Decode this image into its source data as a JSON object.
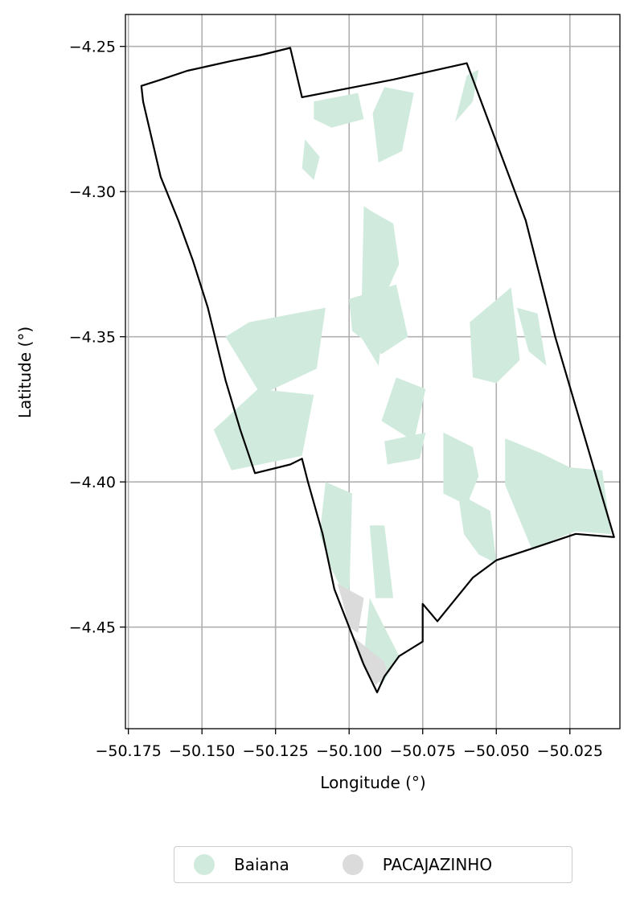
{
  "chart_data": {
    "type": "map",
    "title": "",
    "xlabel": "Longitude (°)",
    "ylabel": "Latitude (°)",
    "xlim": [
      -50.176,
      -50.008
    ],
    "ylim": [
      -4.485,
      -4.239
    ],
    "x_ticks": [
      {
        "value": -50.175,
        "label": "−50.175"
      },
      {
        "value": -50.15,
        "label": "−50.150"
      },
      {
        "value": -50.125,
        "label": "−50.125"
      },
      {
        "value": -50.1,
        "label": "−50.100"
      },
      {
        "value": -50.075,
        "label": "−50.075"
      },
      {
        "value": -50.05,
        "label": "−50.050"
      },
      {
        "value": -50.025,
        "label": "−50.025"
      }
    ],
    "y_ticks": [
      {
        "value": -4.25,
        "label": "−4.25"
      },
      {
        "value": -4.3,
        "label": "−4.30"
      },
      {
        "value": -4.35,
        "label": "−4.35"
      },
      {
        "value": -4.4,
        "label": "−4.40"
      },
      {
        "value": -4.45,
        "label": "−4.45"
      }
    ],
    "grid": true,
    "legend_position": "bottom-center",
    "legend": [
      {
        "name": "Baiana",
        "color": "#d0ebdd"
      },
      {
        "name": "PACAJAZINHO",
        "color": "#dcdbdc"
      }
    ],
    "boundary": [
      [
        -50.1706,
        -4.2636
      ],
      [
        -50.1644,
        -4.2616
      ],
      [
        -50.155,
        -4.2584
      ],
      [
        -50.14,
        -4.255
      ],
      [
        -50.13,
        -4.253
      ],
      [
        -50.12,
        -4.2505
      ],
      [
        -50.116,
        -4.2675
      ],
      [
        -50.085,
        -4.2614
      ],
      [
        -50.06,
        -4.2558
      ],
      [
        -50.04,
        -4.31
      ],
      [
        -50.03,
        -4.35
      ],
      [
        -50.01,
        -4.419
      ],
      [
        -50.023,
        -4.4179
      ],
      [
        -50.038,
        -4.423
      ],
      [
        -50.05,
        -4.427
      ],
      [
        -50.058,
        -4.433
      ],
      [
        -50.07,
        -4.448
      ],
      [
        -50.075,
        -4.442
      ],
      [
        -50.075,
        -4.455
      ],
      [
        -50.083,
        -4.46
      ],
      [
        -50.088,
        -4.467
      ],
      [
        -50.0905,
        -4.4725
      ],
      [
        -50.095,
        -4.463
      ],
      [
        -50.1,
        -4.45
      ],
      [
        -50.105,
        -4.437
      ],
      [
        -50.109,
        -4.418
      ],
      [
        -50.114,
        -4.4
      ],
      [
        -50.116,
        -4.392
      ],
      [
        -50.12,
        -4.394
      ],
      [
        -50.132,
        -4.397
      ],
      [
        -50.137,
        -4.382
      ],
      [
        -50.142,
        -4.365
      ],
      [
        -50.148,
        -4.34
      ],
      [
        -50.153,
        -4.324
      ],
      [
        -50.158,
        -4.31
      ],
      [
        -50.164,
        -4.295
      ],
      [
        -50.17,
        -4.269
      ]
    ],
    "regions": [
      {
        "name": "Baiana",
        "color": "#d0ebdd",
        "polygons": [
          [
            [
              -50.095,
              -4.305
            ],
            [
              -50.092,
              -4.307
            ],
            [
              -50.085,
              -4.311
            ],
            [
              -50.083,
              -4.325
            ],
            [
              -50.087,
              -4.334
            ],
            [
              -50.09,
              -4.36
            ],
            [
              -50.096,
              -4.35
            ]
          ],
          [
            [
              -50.1,
              -4.337
            ],
            [
              -50.084,
              -4.332
            ],
            [
              -50.08,
              -4.35
            ],
            [
              -50.089,
              -4.356
            ],
            [
              -50.099,
              -4.348
            ]
          ],
          [
            [
              -50.108,
              -4.34
            ],
            [
              -50.134,
              -4.345
            ],
            [
              -50.142,
              -4.35
            ],
            [
              -50.13,
              -4.37
            ],
            [
              -50.111,
              -4.361
            ]
          ],
          [
            [
              -50.131,
              -4.368
            ],
            [
              -50.146,
              -4.382
            ],
            [
              -50.14,
              -4.396
            ],
            [
              -50.116,
              -4.391
            ],
            [
              -50.112,
              -4.37
            ]
          ],
          [
            [
              -50.084,
              -4.364
            ],
            [
              -50.074,
              -4.368
            ],
            [
              -50.078,
              -4.386
            ],
            [
              -50.089,
              -4.379
            ]
          ],
          [
            [
              -50.088,
              -4.386
            ],
            [
              -50.074,
              -4.383
            ],
            [
              -50.076,
              -4.392
            ],
            [
              -50.087,
              -4.394
            ]
          ],
          [
            [
              -50.059,
              -4.345
            ],
            [
              -50.045,
              -4.333
            ],
            [
              -50.042,
              -4.358
            ],
            [
              -50.05,
              -4.366
            ],
            [
              -50.058,
              -4.364
            ]
          ],
          [
            [
              -50.043,
              -4.34
            ],
            [
              -50.039,
              -4.355
            ],
            [
              -50.033,
              -4.36
            ],
            [
              -50.036,
              -4.342
            ]
          ],
          [
            [
              -50.047,
              -4.385
            ],
            [
              -50.035,
              -4.39
            ],
            [
              -50.025,
              -4.395
            ],
            [
              -50.014,
              -4.396
            ],
            [
              -50.011,
              -4.418
            ],
            [
              -50.023,
              -4.417
            ],
            [
              -50.038,
              -4.423
            ],
            [
              -50.047,
              -4.401
            ]
          ],
          [
            [
              -50.064,
              -4.276
            ],
            [
              -50.06,
              -4.26
            ],
            [
              -50.056,
              -4.258
            ],
            [
              -50.058,
              -4.269
            ]
          ],
          [
            [
              -50.088,
              -4.264
            ],
            [
              -50.078,
              -4.266
            ],
            [
              -50.082,
              -4.286
            ],
            [
              -50.09,
              -4.29
            ],
            [
              -50.092,
              -4.273
            ]
          ],
          [
            [
              -50.112,
              -4.269
            ],
            [
              -50.097,
              -4.266
            ],
            [
              -50.095,
              -4.275
            ],
            [
              -50.106,
              -4.278
            ],
            [
              -50.112,
              -4.275
            ]
          ],
          [
            [
              -50.115,
              -4.282
            ],
            [
              -50.11,
              -4.288
            ],
            [
              -50.112,
              -4.296
            ],
            [
              -50.116,
              -4.292
            ]
          ],
          [
            [
              -50.108,
              -4.4
            ],
            [
              -50.099,
              -4.404
            ],
            [
              -50.1,
              -4.442
            ],
            [
              -50.106,
              -4.43
            ],
            [
              -50.11,
              -4.418
            ]
          ],
          [
            [
              -50.093,
              -4.415
            ],
            [
              -50.088,
              -4.415
            ],
            [
              -50.085,
              -4.44
            ],
            [
              -50.091,
              -4.44
            ]
          ],
          [
            [
              -50.093,
              -4.44
            ],
            [
              -50.083,
              -4.46
            ],
            [
              -50.089,
              -4.47
            ],
            [
              -50.095,
              -4.46
            ]
          ],
          [
            [
              -50.068,
              -4.383
            ],
            [
              -50.058,
              -4.388
            ],
            [
              -50.056,
              -4.398
            ],
            [
              -50.06,
              -4.408
            ],
            [
              -50.068,
              -4.404
            ]
          ],
          [
            [
              -50.063,
              -4.404
            ],
            [
              -50.052,
              -4.41
            ],
            [
              -50.05,
              -4.428
            ],
            [
              -50.056,
              -4.425
            ],
            [
              -50.061,
              -4.418
            ]
          ]
        ]
      },
      {
        "name": "PACAJAZINHO",
        "color": "#dcdbdc",
        "polygons": [
          [
            [
              -50.104,
              -4.435
            ],
            [
              -50.095,
              -4.44
            ],
            [
              -50.097,
              -4.452
            ],
            [
              -50.1,
              -4.45
            ],
            [
              -50.102,
              -4.442
            ]
          ],
          [
            [
              -50.099,
              -4.453
            ],
            [
              -50.088,
              -4.462
            ],
            [
              -50.087,
              -4.466
            ],
            [
              -50.091,
              -4.47
            ],
            [
              -50.096,
              -4.462
            ]
          ]
        ]
      }
    ]
  }
}
